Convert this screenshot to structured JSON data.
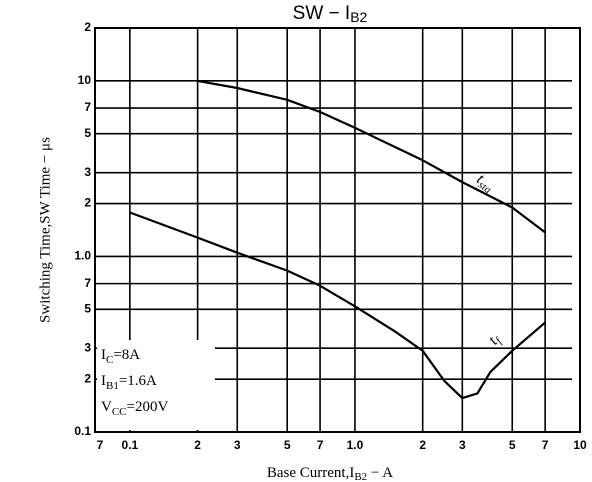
{
  "chart_data": {
    "type": "line",
    "title": "SW − I",
    "title_sub": "B2",
    "x_label": [
      "Base Current,I",
      "B2",
      " − A"
    ],
    "y_label": "Switching Time,SW Time − μs",
    "log_x": true,
    "log_y": true,
    "grid": true,
    "color": "#000000",
    "xlim": [
      0.07,
      10
    ],
    "ylim": [
      0.1,
      20
    ],
    "xticks": [
      {
        "value": 0.07,
        "label": "7"
      },
      {
        "value": 0.1,
        "label": "0.1"
      },
      {
        "value": 0.2,
        "label": "2"
      },
      {
        "value": 0.3,
        "label": "3"
      },
      {
        "value": 0.5,
        "label": "5"
      },
      {
        "value": 0.7,
        "label": "7"
      },
      {
        "value": 1,
        "label": "1.0"
      },
      2,
      3,
      5,
      7,
      10
    ],
    "yticks": [
      0.1,
      {
        "value": 0.2,
        "label": "2"
      },
      {
        "value": 0.3,
        "label": "3"
      },
      {
        "value": 0.5,
        "label": "5"
      },
      {
        "value": 0.7,
        "label": "7"
      },
      {
        "value": 1,
        "label": "1.0"
      },
      2,
      3,
      5,
      7,
      10,
      {
        "value": 20,
        "label": "2"
      }
    ],
    "series": [
      {
        "name": "t",
        "name_sub": "stg",
        "color": "#000000",
        "x": [
          0.2,
          0.3,
          0.5,
          0.7,
          1,
          2,
          3,
          5,
          7
        ],
        "values": [
          10,
          9.1,
          7.8,
          6.65,
          5.4,
          3.53,
          2.65,
          1.9,
          1.37
        ]
      },
      {
        "name": "t",
        "name_sub": "f",
        "color": "#000000",
        "x": [
          0.1,
          0.2,
          0.3,
          0.5,
          0.7,
          1,
          1.5,
          2,
          2.5,
          3,
          3.5,
          4,
          5,
          7
        ],
        "values": [
          1.78,
          1.28,
          1.05,
          0.83,
          0.68,
          0.52,
          0.375,
          0.29,
          0.195,
          0.156,
          0.166,
          0.22,
          0.29,
          0.42
        ]
      }
    ],
    "conditions": [
      {
        "main": "I",
        "sub": "C",
        "rest": "=8A"
      },
      {
        "main": "I",
        "sub": "B1",
        "rest": "=1.6A"
      },
      {
        "main": "V",
        "sub": "CC",
        "rest": "=200V"
      }
    ]
  }
}
